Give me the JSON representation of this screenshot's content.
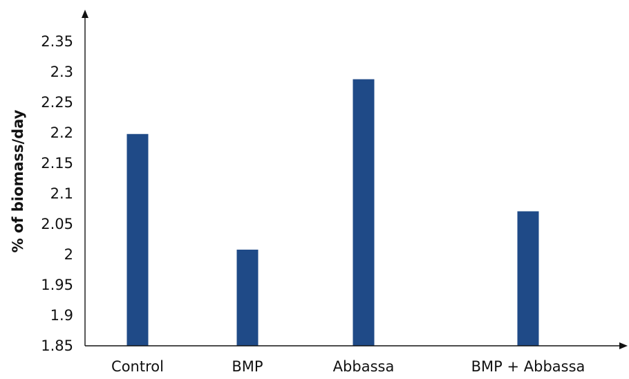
{
  "chart_data": {
    "type": "bar",
    "categories": [
      "Control",
      "BMP",
      "Abbassa",
      "BMP + Abbassa"
    ],
    "values": [
      2.198,
      2.008,
      2.288,
      2.071
    ],
    "ylabel": "% of biomass/day",
    "xlabel": "",
    "ylim": [
      1.85,
      2.35
    ],
    "yticks": [
      "1.85",
      "1.9",
      "1.95",
      "2",
      "2.05",
      "2.1",
      "2.15",
      "2.2",
      "2.25",
      "2.3",
      "2.35"
    ],
    "grid": false,
    "bar_color": "#1f4a87",
    "axis_color": "#111111"
  }
}
